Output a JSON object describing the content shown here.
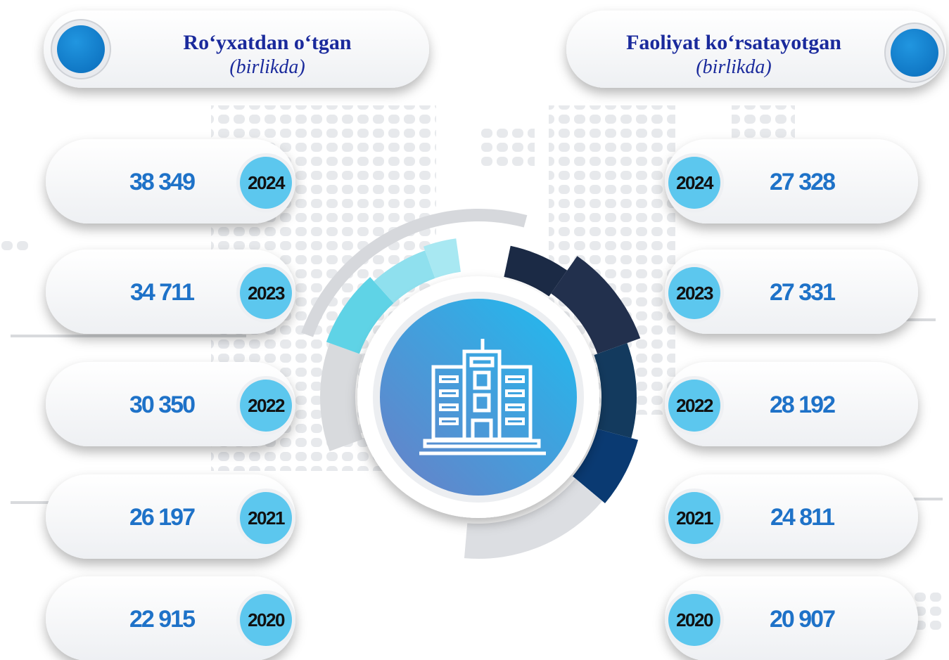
{
  "left": {
    "title": "Ro‘yxatdan o‘tgan",
    "subtitle": "(birlikda)",
    "items": [
      {
        "year": "2024",
        "value": "38 349"
      },
      {
        "year": "2023",
        "value": "34 711"
      },
      {
        "year": "2022",
        "value": "30 350"
      },
      {
        "year": "2021",
        "value": "26 197"
      },
      {
        "year": "2020",
        "value": "22 915"
      }
    ]
  },
  "right": {
    "title": "Faoliyat ko‘rsatayotgan",
    "subtitle": "(birlikda)",
    "items": [
      {
        "year": "2024",
        "value": "27 328"
      },
      {
        "year": "2023",
        "value": "27 331"
      },
      {
        "year": "2022",
        "value": "28 192"
      },
      {
        "year": "2021",
        "value": "24 811"
      },
      {
        "year": "2020",
        "value": "20 907"
      }
    ]
  }
}
